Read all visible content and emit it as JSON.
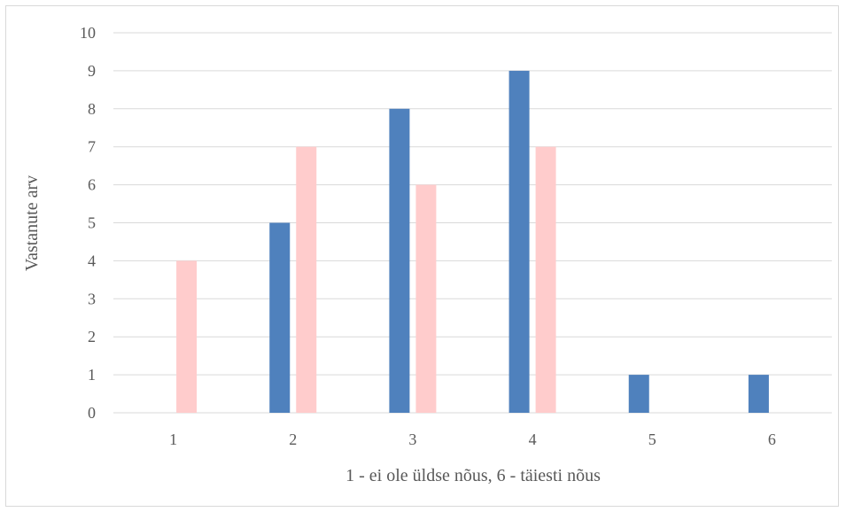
{
  "chart_data": {
    "type": "bar",
    "categories": [
      "1",
      "2",
      "3",
      "4",
      "5",
      "6"
    ],
    "series": [
      {
        "values": [
          0,
          5,
          8,
          9,
          1,
          1
        ],
        "color": "#4f81bd"
      },
      {
        "values": [
          4,
          7,
          6,
          7,
          0,
          0
        ],
        "color": "#ffcccc"
      }
    ],
    "title": "",
    "xlabel": "1 - ei ole üldse nõus, 6 - täiesti nõus",
    "ylabel": "Vastanute arv",
    "ylim": [
      0,
      10
    ],
    "yticks": [
      "0",
      "1",
      "2",
      "3",
      "4",
      "5",
      "6",
      "7",
      "8",
      "9",
      "10"
    ],
    "grid": true,
    "legend": "none"
  }
}
